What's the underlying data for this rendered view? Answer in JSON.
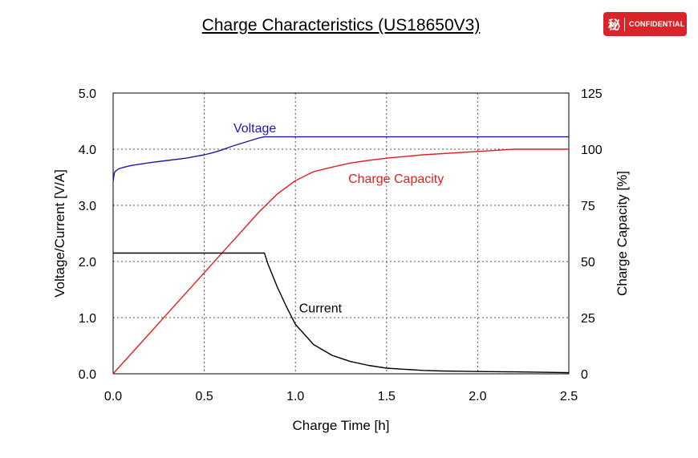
{
  "badge": {
    "glyph": "秘",
    "label": "CONFIDENTIAL",
    "color": "#d9252a"
  },
  "chart_data": {
    "type": "line",
    "title": "Charge Characteristics (US18650V3)",
    "xlabel": "Charge Time [h]",
    "ylabel": "Voltage/Current [V/A]",
    "y2label": "Charge Capacity [%]",
    "xlim": [
      0,
      2.5
    ],
    "ylim": [
      0,
      5
    ],
    "y2lim": [
      0,
      125
    ],
    "xticks": [
      "0.0",
      "0.5",
      "1.0",
      "1.5",
      "2.0",
      "2.5"
    ],
    "yticks": [
      "0.0",
      "1.0",
      "2.0",
      "3.0",
      "4.0",
      "5.0"
    ],
    "y2ticks": [
      "0",
      "25",
      "50",
      "75",
      "100",
      "125"
    ],
    "grid": true,
    "series": [
      {
        "name": "Voltage",
        "axis": "left",
        "color": "#1a1aa6",
        "x": [
          0,
          0.005,
          0.01,
          0.03,
          0.06,
          0.1,
          0.2,
          0.3,
          0.4,
          0.5,
          0.55,
          0.6,
          0.65,
          0.7,
          0.75,
          0.8,
          0.83,
          0.85,
          1.0,
          1.5,
          2.0,
          2.5
        ],
        "y": [
          3.42,
          3.55,
          3.6,
          3.65,
          3.68,
          3.71,
          3.76,
          3.8,
          3.84,
          3.9,
          3.94,
          3.99,
          4.05,
          4.1,
          4.15,
          4.2,
          4.22,
          4.22,
          4.22,
          4.22,
          4.22,
          4.22
        ]
      },
      {
        "name": "Charge Capacity",
        "axis": "right",
        "color": "#e02020",
        "x": [
          0,
          0.2,
          0.4,
          0.6,
          0.8,
          0.9,
          1.0,
          1.1,
          1.2,
          1.3,
          1.4,
          1.5,
          1.7,
          2.0,
          2.2,
          2.5
        ],
        "y": [
          0,
          18,
          36,
          54,
          72,
          80,
          86,
          90,
          92,
          93.8,
          95,
          96,
          97.5,
          99,
          100,
          100
        ]
      },
      {
        "name": "Current",
        "axis": "left",
        "color": "#000000",
        "x": [
          0,
          0.005,
          0.5,
          0.8,
          0.83,
          0.85,
          0.9,
          0.95,
          1.0,
          1.1,
          1.2,
          1.3,
          1.4,
          1.5,
          1.6,
          1.7,
          1.8,
          1.9,
          2.0,
          2.2,
          2.5
        ],
        "y": [
          2.15,
          2.15,
          2.15,
          2.15,
          2.15,
          1.95,
          1.55,
          1.2,
          0.88,
          0.52,
          0.33,
          0.22,
          0.15,
          0.1,
          0.08,
          0.06,
          0.05,
          0.045,
          0.04,
          0.035,
          0.02
        ]
      }
    ],
    "annotations": [
      {
        "text": "Voltage",
        "x": 0.66,
        "y": 4.3,
        "color": "#1a1aa6"
      },
      {
        "text": "Charge Capacity",
        "x": 1.29,
        "y": 3.4,
        "color": "#e02020"
      },
      {
        "text": "Current",
        "x": 1.02,
        "y": 1.09,
        "color": "#000000"
      }
    ]
  }
}
